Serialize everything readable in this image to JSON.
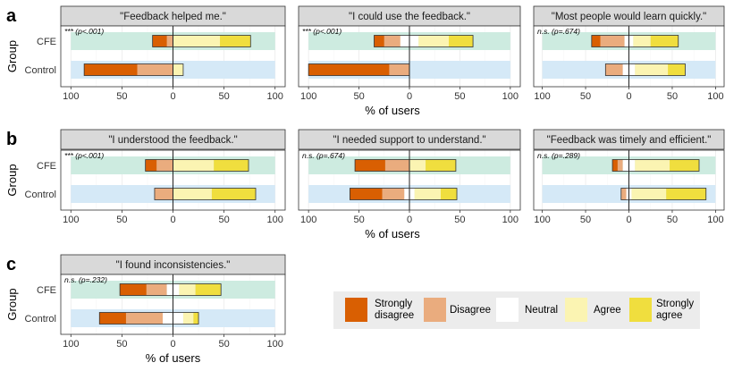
{
  "chart_data": {
    "type": "bar",
    "subtype": "diverging-stacked-likert",
    "ylabel": "Group",
    "xlabel": "% of users",
    "groups": [
      "CFE",
      "Control"
    ],
    "xlim": [
      -100,
      100
    ],
    "xticks": [
      -100,
      -50,
      0,
      50,
      100
    ],
    "xtick_labels": [
      "100",
      "50",
      "0",
      "50",
      "100"
    ],
    "categories": [
      "Strongly disagree",
      "Disagree",
      "Neutral",
      "Agree",
      "Strongly agree"
    ],
    "legend": {
      "position": "bottom-right",
      "labels": [
        "Strongly\ndisagree",
        "Disagree",
        "Neutral",
        "Agree",
        "Strongly\nagree"
      ]
    },
    "colors": {
      "Strongly disagree": "#d95f02",
      "Disagree": "#eaac7e",
      "Neutral": "#ffffff",
      "Agree": "#fbf4b2",
      "Strongly agree": "#f0de3e",
      "cfe_band": "#cdebe0",
      "control_band": "#d5e9f7",
      "strip": "#d9d9d9",
      "panel_label": "#000000"
    },
    "rows": [
      {
        "row_label": "a",
        "panels": [
          {
            "title": "\"Feedback helped me.\"",
            "annotation": "*** (p<.001)",
            "series": [
              {
                "group": "CFE",
                "values": [
                  14,
                  6,
                  0,
                  46,
                  30
                ]
              },
              {
                "group": "Control",
                "values": [
                  52,
                  35,
                  0,
                  10,
                  0
                ]
              }
            ]
          },
          {
            "title": "\"I could use the feedback.\"",
            "annotation": "*** (p<.001)",
            "series": [
              {
                "group": "CFE",
                "values": [
                  10,
                  16,
                  18,
                  30,
                  24
                ]
              },
              {
                "group": "Control",
                "values": [
                  80,
                  20,
                  0,
                  0,
                  0
                ]
              }
            ]
          },
          {
            "title": "\"Most people would learn quickly.\"",
            "annotation": "n.s. (p=.674)",
            "series": [
              {
                "group": "CFE",
                "values": [
                  10,
                  28,
                  10,
                  20,
                  32
                ]
              },
              {
                "group": "Control",
                "values": [
                  0,
                  20,
                  14,
                  38,
                  20
                ]
              }
            ]
          }
        ]
      },
      {
        "row_label": "b",
        "panels": [
          {
            "title": "\"I understood the feedback.\"",
            "annotation": "*** (p<.001)",
            "series": [
              {
                "group": "CFE",
                "values": [
                  11,
                  16,
                  0,
                  40,
                  34
                ]
              },
              {
                "group": "Control",
                "values": [
                  0,
                  18,
                  0,
                  38,
                  43
                ]
              }
            ]
          },
          {
            "title": "\"I needed support to understand.\"",
            "annotation": "n.s. (p=.674)",
            "series": [
              {
                "group": "CFE",
                "values": [
                  30,
                  24,
                  0,
                  16,
                  30
                ]
              },
              {
                "group": "Control",
                "values": [
                  32,
                  22,
                  10,
                  26,
                  16
                ]
              }
            ]
          },
          {
            "title": "\"Feedback was timely and efficient.\"",
            "annotation": "n.s. (p=.289)",
            "series": [
              {
                "group": "CFE",
                "values": [
                  6,
                  6,
                  14,
                  40,
                  34
                ]
              },
              {
                "group": "Control",
                "values": [
                  0,
                  6,
                  6,
                  40,
                  46
                ]
              }
            ]
          }
        ]
      },
      {
        "row_label": "c",
        "panels": [
          {
            "title": "\"I found inconsistencies.\"",
            "annotation": "n.s. (p=.232)",
            "series": [
              {
                "group": "CFE",
                "values": [
                  26,
                  20,
                  12,
                  16,
                  25
                ]
              },
              {
                "group": "Control",
                "values": [
                  26,
                  36,
                  20,
                  10,
                  5
                ]
              }
            ]
          }
        ]
      }
    ]
  }
}
